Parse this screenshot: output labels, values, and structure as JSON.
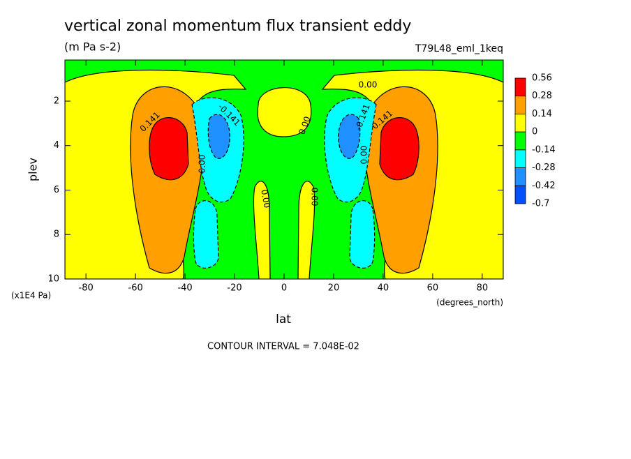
{
  "chart_data": {
    "type": "contour",
    "title": "vertical zonal momentum flux transient eddy",
    "subtitle": "(m Pa s-2)",
    "dataset": "T79L48_eml_1keq",
    "xlabel": "lat",
    "xunits": "(degrees_north)",
    "ylabel": "plev",
    "yunits": "(x1E4 Pa)",
    "footer": "CONTOUR INTERVAL = 7.048E-02",
    "xlim": [
      -88.5,
      88.5
    ],
    "xticks": [
      -80,
      -60,
      -40,
      -20,
      0,
      20,
      40,
      60,
      80
    ],
    "ylim": [
      0.15,
      10
    ],
    "y_inverted": true,
    "yticks": [
      2,
      4,
      6,
      8,
      10
    ],
    "levels": [
      0.56,
      0.28,
      0.14,
      0,
      -0.14,
      -0.28,
      -0.42,
      -0.7
    ],
    "colors": [
      "#ff0000",
      "#ff9f00",
      "#ffff00",
      "#00ff00",
      "#00ffff",
      "#1e90ff",
      "#0050ff"
    ],
    "contour_labels": [
      "0.141",
      "-0.141",
      "0.00",
      "0.00",
      "0.00",
      "0.00",
      "0.00",
      "-0.141",
      "0.141",
      "0.00"
    ]
  }
}
